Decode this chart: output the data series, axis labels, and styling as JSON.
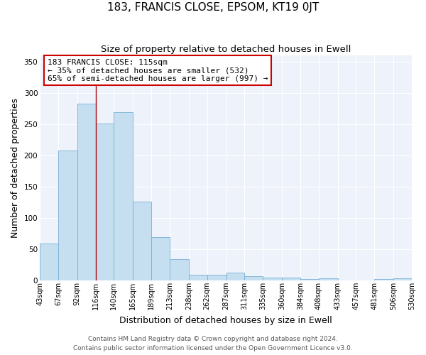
{
  "title": "183, FRANCIS CLOSE, EPSOM, KT19 0JT",
  "subtitle": "Size of property relative to detached houses in Ewell",
  "xlabel": "Distribution of detached houses by size in Ewell",
  "ylabel": "Number of detached properties",
  "footnote1": "Contains HM Land Registry data © Crown copyright and database right 2024.",
  "footnote2": "Contains public sector information licensed under the Open Government Licence v3.0.",
  "annotation_line1": "183 FRANCIS CLOSE: 115sqm",
  "annotation_line2": "← 35% of detached houses are smaller (532)",
  "annotation_line3": "65% of semi-detached houses are larger (997) →",
  "bin_edges": [
    43,
    67,
    92,
    116,
    140,
    165,
    189,
    213,
    238,
    262,
    287,
    311,
    335,
    360,
    384,
    408,
    433,
    457,
    481,
    506,
    530
  ],
  "bin_labels": [
    "43sqm",
    "67sqm",
    "92sqm",
    "116sqm",
    "140sqm",
    "165sqm",
    "189sqm",
    "213sqm",
    "238sqm",
    "262sqm",
    "287sqm",
    "311sqm",
    "335sqm",
    "360sqm",
    "384sqm",
    "408sqm",
    "433sqm",
    "457sqm",
    "481sqm",
    "506sqm",
    "530sqm"
  ],
  "counts": [
    59,
    208,
    283,
    251,
    269,
    126,
    70,
    35,
    9,
    9,
    13,
    7,
    5,
    5,
    3,
    4,
    0,
    1,
    3,
    4
  ],
  "bar_color": "#c5dff0",
  "bar_edge_color": "#7ab0d4",
  "red_line_x": 116,
  "ylim": [
    0,
    360
  ],
  "yticks": [
    0,
    50,
    100,
    150,
    200,
    250,
    300,
    350
  ],
  "bg_color": "#eef2fa",
  "annotation_box_color": "#ffffff",
  "annotation_box_edge": "#cc0000",
  "red_line_color": "#aa0000",
  "title_fontsize": 11,
  "subtitle_fontsize": 9.5,
  "label_fontsize": 9,
  "tick_fontsize": 7,
  "annotation_fontsize": 8,
  "footnote_fontsize": 6.5
}
